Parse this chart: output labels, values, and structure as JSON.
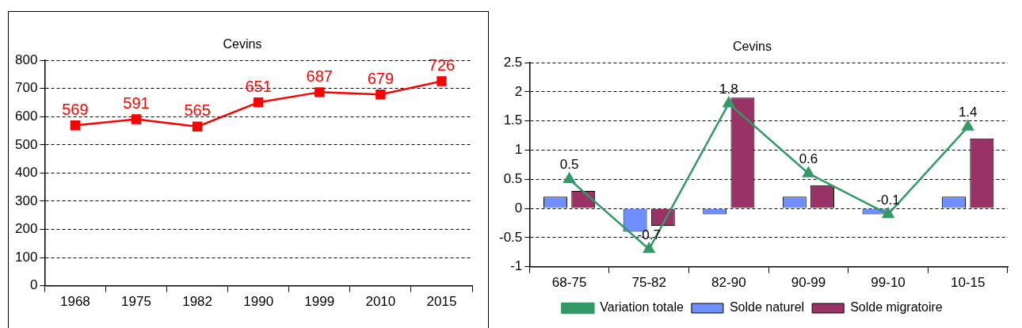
{
  "chart_data": [
    {
      "type": "line",
      "title": "Cevins",
      "categories": [
        "1968",
        "1975",
        "1982",
        "1990",
        "1999",
        "2010",
        "2015"
      ],
      "series": [
        {
          "color": "#ff0000",
          "values": [
            569,
            591,
            565,
            651,
            687,
            679,
            726
          ]
        }
      ],
      "data_labels": true,
      "marker": "square",
      "ylim": [
        0,
        800
      ],
      "yticks": [
        0,
        100,
        200,
        300,
        400,
        500,
        600,
        700,
        800
      ],
      "grid": "y",
      "legend": false
    },
    {
      "type": "bar",
      "title": "Cevins",
      "categories": [
        "68-75",
        "75-82",
        "82-90",
        "90-99",
        "99-10",
        "10-15"
      ],
      "series": [
        {
          "name": "Solde naturel",
          "color": "#6f8fff",
          "values": [
            0.2,
            -0.4,
            -0.1,
            0.2,
            -0.1,
            0.2
          ]
        },
        {
          "name": "Solde migratoire",
          "color": "#993366",
          "values": [
            0.3,
            -0.3,
            1.9,
            0.4,
            0,
            1.2
          ]
        },
        {
          "name": "Variation totale",
          "type": "line",
          "color": "#339966",
          "marker": "triangle",
          "values": [
            0.5,
            -0.7,
            1.8,
            0.6,
            -0.1,
            1.4
          ],
          "value_labels": [
            "0.5",
            "-0.7",
            "1.8",
            "0.6",
            "-0.1",
            "1.4"
          ]
        }
      ],
      "ylim": [
        -1,
        2.5
      ],
      "yticks": [
        -1,
        -0.5,
        0,
        0.5,
        1,
        1.5,
        2,
        2.5
      ],
      "grid": "y",
      "legend": "bottom"
    }
  ]
}
